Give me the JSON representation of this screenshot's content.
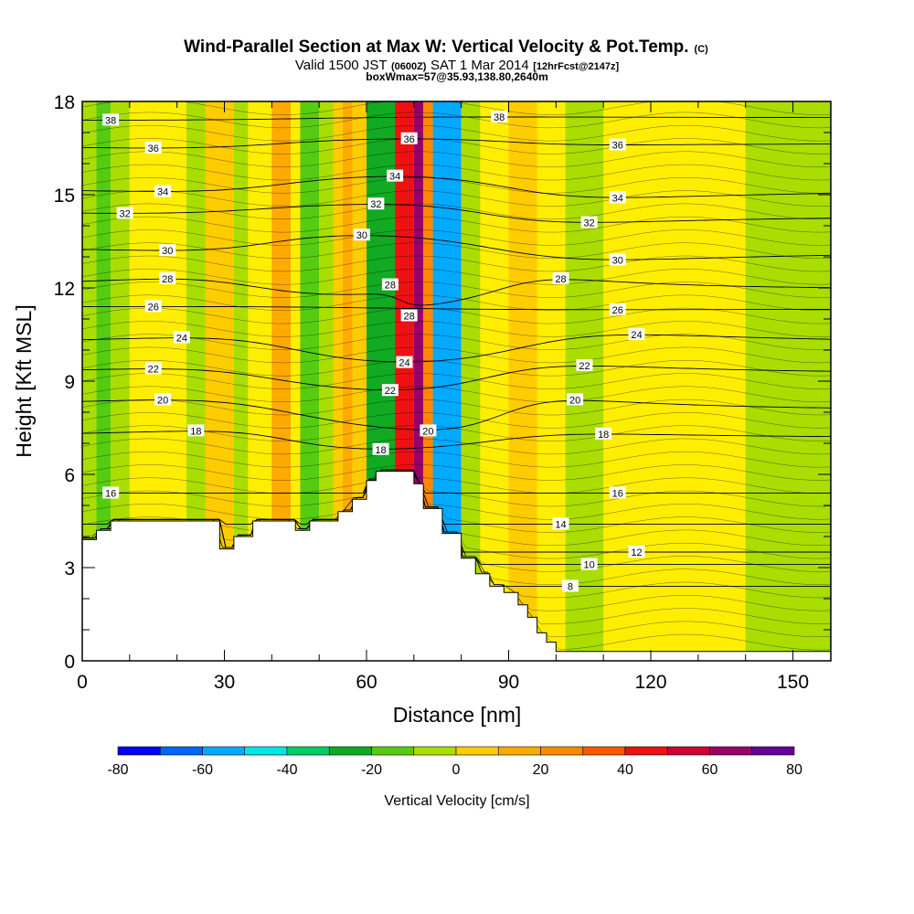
{
  "title": {
    "line1": "Wind-Parallel Section at Max W: Vertical Velocity & Pot.Temp.",
    "line1_mark": "(C)",
    "line2_a": "Valid 1500 JST",
    "line2_b": "(0600Z)",
    "line2_c": "SAT 1 Mar 2014",
    "line2_d": "[12hrFcst@2147z]",
    "line3": "boxWmax=57@35.93,138.80,2640m"
  },
  "chart_data": {
    "type": "heatmap",
    "xlabel": "Distance [nm]",
    "ylabel": "Height [Kft MSL]",
    "xlim": [
      0,
      158
    ],
    "ylim": [
      0,
      18
    ],
    "x_ticks": [
      0,
      30,
      60,
      90,
      120,
      150
    ],
    "y_ticks": [
      0,
      3,
      6,
      9,
      12,
      15,
      18
    ],
    "grid": false,
    "colorbar": {
      "label": "Vertical Velocity [cm/s]",
      "placement": "bottom",
      "levels": [
        -80,
        -70,
        -60,
        -50,
        -40,
        -30,
        -20,
        -10,
        0,
        10,
        20,
        30,
        40,
        50,
        60,
        70,
        80
      ],
      "tick_labels": [
        "-80",
        "-60",
        "-40",
        "-20",
        "0",
        "20",
        "40",
        "60",
        "80"
      ],
      "tick_values": [
        -80,
        -60,
        -40,
        -20,
        0,
        20,
        40,
        60,
        80
      ],
      "colors": [
        "#0000ff",
        "#0066ff",
        "#00aaff",
        "#00e5e5",
        "#00cc66",
        "#11aa22",
        "#55cc11",
        "#aadd00",
        "#ffee00",
        "#ffcc00",
        "#ffaa00",
        "#ff8800",
        "#ff5500",
        "#ee1111",
        "#cc0033",
        "#990066",
        "#660099"
      ]
    },
    "terrain_kft": [
      [
        0,
        3.9
      ],
      [
        3,
        4.2
      ],
      [
        6,
        4.5
      ],
      [
        20,
        4.5
      ],
      [
        29,
        4.5
      ],
      [
        29,
        3.6
      ],
      [
        32,
        4.0
      ],
      [
        36,
        4.5
      ],
      [
        45,
        4.5
      ],
      [
        45,
        4.2
      ],
      [
        48,
        4.5
      ],
      [
        54,
        4.8
      ],
      [
        57,
        5.2
      ],
      [
        60,
        5.8
      ],
      [
        62,
        6.1
      ],
      [
        67,
        6.1
      ],
      [
        70,
        5.7
      ],
      [
        72,
        4.9
      ],
      [
        76,
        4.1
      ],
      [
        80,
        3.3
      ],
      [
        83,
        2.8
      ],
      [
        86,
        2.4
      ],
      [
        89,
        2.2
      ],
      [
        92,
        1.8
      ],
      [
        94,
        1.4
      ],
      [
        96,
        0.9
      ],
      [
        98,
        0.6
      ],
      [
        100,
        0.3
      ],
      [
        158,
        0.3
      ]
    ],
    "theta_contours": [
      {
        "value": 8,
        "label_x": 103,
        "label_y": 2.4
      },
      {
        "value": 10,
        "label_x": 107,
        "label_y": 3.1
      },
      {
        "value": 12,
        "label_x": 117,
        "label_y": 3.5
      },
      {
        "value": 14,
        "label_x": 101,
        "label_y": 4.4
      },
      {
        "value": 16,
        "label_x": 6,
        "label_y": 5.4
      },
      {
        "value": 16,
        "label_x": 113,
        "label_y": 5.4
      },
      {
        "value": 18,
        "label_x": 24,
        "label_y": 7.4
      },
      {
        "value": 18,
        "label_x": 63,
        "label_y": 6.8
      },
      {
        "value": 18,
        "label_x": 110,
        "label_y": 7.3
      },
      {
        "value": 20,
        "label_x": 17,
        "label_y": 8.4
      },
      {
        "value": 20,
        "label_x": 73,
        "label_y": 7.4
      },
      {
        "value": 20,
        "label_x": 104,
        "label_y": 8.4
      },
      {
        "value": 22,
        "label_x": 15,
        "label_y": 9.4
      },
      {
        "value": 22,
        "label_x": 65,
        "label_y": 8.7
      },
      {
        "value": 22,
        "label_x": 106,
        "label_y": 9.5
      },
      {
        "value": 24,
        "label_x": 21,
        "label_y": 10.4
      },
      {
        "value": 24,
        "label_x": 68,
        "label_y": 9.6
      },
      {
        "value": 24,
        "label_x": 117,
        "label_y": 10.5
      },
      {
        "value": 26,
        "label_x": 15,
        "label_y": 11.4
      },
      {
        "value": 26,
        "label_x": 113,
        "label_y": 11.3
      },
      {
        "value": 28,
        "label_x": 18,
        "label_y": 12.3
      },
      {
        "value": 28,
        "label_x": 65,
        "label_y": 12.1
      },
      {
        "value": 28,
        "label_x": 69,
        "label_y": 11.1
      },
      {
        "value": 28,
        "label_x": 101,
        "label_y": 12.3
      },
      {
        "value": 30,
        "label_x": 18,
        "label_y": 13.2
      },
      {
        "value": 30,
        "label_x": 59,
        "label_y": 13.7
      },
      {
        "value": 30,
        "label_x": 113,
        "label_y": 12.9
      },
      {
        "value": 32,
        "label_x": 9,
        "label_y": 14.4
      },
      {
        "value": 32,
        "label_x": 62,
        "label_y": 14.7
      },
      {
        "value": 32,
        "label_x": 107,
        "label_y": 14.1
      },
      {
        "value": 34,
        "label_x": 17,
        "label_y": 15.1
      },
      {
        "value": 34,
        "label_x": 66,
        "label_y": 15.6
      },
      {
        "value": 34,
        "label_x": 113,
        "label_y": 14.9
      },
      {
        "value": 36,
        "label_x": 15,
        "label_y": 16.5
      },
      {
        "value": 36,
        "label_x": 69,
        "label_y": 16.8
      },
      {
        "value": 36,
        "label_x": 113,
        "label_y": 16.6
      },
      {
        "value": 38,
        "label_x": 6,
        "label_y": 17.4
      },
      {
        "value": 38,
        "label_x": 88,
        "label_y": 17.5
      }
    ],
    "w_field": [
      {
        "x_from": 0,
        "x_to": 3,
        "value": -5
      },
      {
        "x_from": 3,
        "x_to": 6,
        "value": -20
      },
      {
        "x_from": 6,
        "x_to": 10,
        "value": -5
      },
      {
        "x_from": 10,
        "x_to": 14,
        "value": 5
      },
      {
        "x_from": 14,
        "x_to": 22,
        "value": 0
      },
      {
        "x_from": 22,
        "x_to": 26,
        "value": -5
      },
      {
        "x_from": 26,
        "x_to": 32,
        "value": 10
      },
      {
        "x_from": 32,
        "x_to": 35,
        "value": -10
      },
      {
        "x_from": 35,
        "x_to": 40,
        "value": 5
      },
      {
        "x_from": 40,
        "x_to": 44,
        "value": 20
      },
      {
        "x_from": 44,
        "x_to": 46,
        "value": 5
      },
      {
        "x_from": 46,
        "x_to": 50,
        "value": -15
      },
      {
        "x_from": 50,
        "x_to": 53,
        "value": -5
      },
      {
        "x_from": 53,
        "x_to": 55,
        "value": 10
      },
      {
        "x_from": 55,
        "x_to": 57,
        "value": 20
      },
      {
        "x_from": 57,
        "x_to": 60,
        "value": 10
      },
      {
        "x_from": 60,
        "x_to": 66,
        "value": -30
      },
      {
        "x_from": 66,
        "x_to": 70,
        "value": 50
      },
      {
        "x_from": 70,
        "x_to": 72,
        "value": 70
      },
      {
        "x_from": 72,
        "x_to": 74,
        "value": 30
      },
      {
        "x_from": 74,
        "x_to": 80,
        "value": -60
      },
      {
        "x_from": 80,
        "x_to": 84,
        "value": -10
      },
      {
        "x_from": 84,
        "x_to": 90,
        "value": 5
      },
      {
        "x_from": 90,
        "x_to": 96,
        "value": 10
      },
      {
        "x_from": 96,
        "x_to": 102,
        "value": 0
      },
      {
        "x_from": 102,
        "x_to": 110,
        "value": -5
      },
      {
        "x_from": 110,
        "x_to": 126,
        "value": 0
      },
      {
        "x_from": 126,
        "x_to": 140,
        "value": 0
      },
      {
        "x_from": 140,
        "x_to": 158,
        "value": -5
      }
    ]
  }
}
